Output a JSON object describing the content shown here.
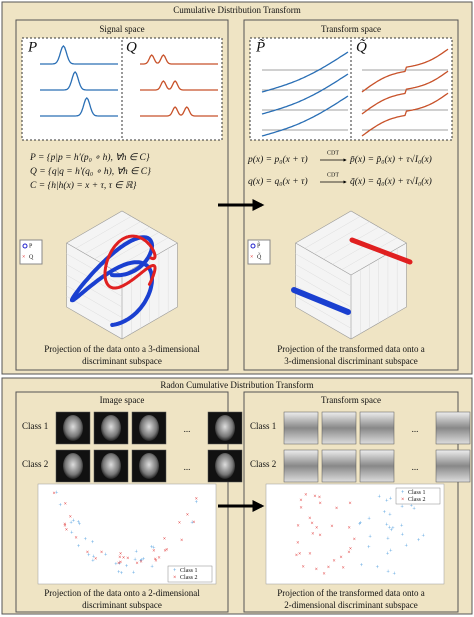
{
  "top_panel": {
    "title": "Cumulative Distribution Transform",
    "signal_space": {
      "title": "Signal space",
      "P_label": "P",
      "Q_label": "Q",
      "equations": [
        "P = {p|p = h′(p₀ ∘ h), ∀h ∈ C}",
        "Q = {q|q = h′(q₀ ∘ h), ∀h ∈ C}",
        "C = {h|h(x) = x + τ, τ ∈ ℝ}"
      ],
      "legend": [
        "P",
        "Q"
      ],
      "caption": [
        "Projection of the data onto a 3-dimensional",
        "discriminant subspace"
      ]
    },
    "transform_space": {
      "title": "Transform space",
      "P_label": "P̃",
      "Q_label": "Q̃",
      "equations": [
        {
          "lhs": "p(x) = p₀(x + τ)",
          "arrow_label": "CDT",
          "rhs": "p̃(x) = p̃₀(x) + τ√I₀(x)"
        },
        {
          "lhs": "q(x) = q₀(x + τ)",
          "arrow_label": "CDT",
          "rhs": "q̃(x) = q̃₀(x) + τ√I₀(x)"
        }
      ],
      "legend": [
        "P̃",
        "Q̃"
      ],
      "caption": [
        "Projection of the transformed data onto a",
        "3-dimensional discriminant subspace"
      ]
    }
  },
  "bottom_panel": {
    "title": "Radon Cumulative Distribution Transform",
    "image_space": {
      "title": "Image space",
      "row_labels": [
        "Class 1",
        "Class 2"
      ],
      "ellipsis": "...",
      "legend": [
        "Class 1",
        "Class 2"
      ],
      "caption": [
        "Projection of the data onto a 2-dimensional",
        "discriminant subspace"
      ]
    },
    "transform_space": {
      "title": "Transform space",
      "row_labels": [
        "Class 1",
        "Class 2"
      ],
      "ellipsis": "...",
      "legend": [
        "Class 1",
        "Class 2"
      ],
      "caption": [
        "Projection of the transformed data onto a",
        "2-dimensional discriminant subspace"
      ]
    }
  }
}
